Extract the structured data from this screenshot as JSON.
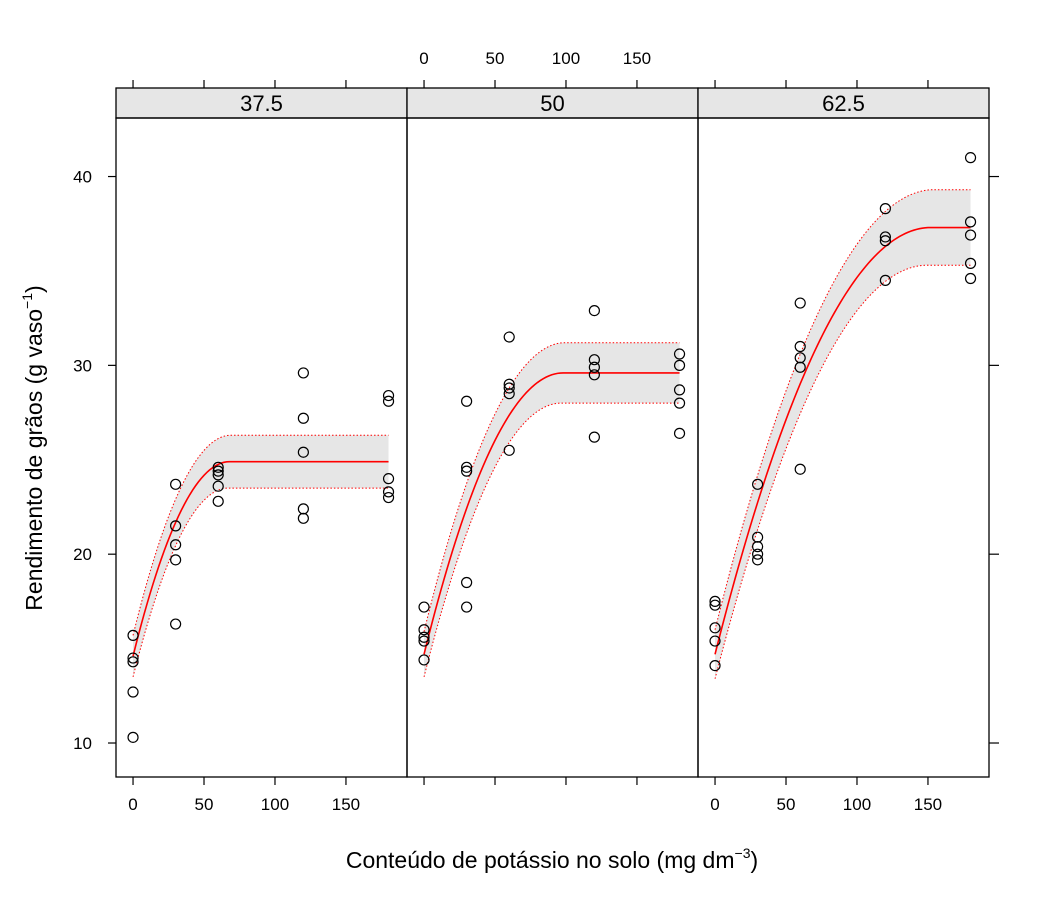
{
  "chart_data": {
    "type": "scatter",
    "layout": "three panels side by side with shared y axis",
    "xlabel": {
      "main": "Conteúdo de potássio no solo (mg dm",
      "sup": "−3",
      "close": ")"
    },
    "ylabel": {
      "main": "Rendimento de grãos (g vaso",
      "sup": "−1",
      "close": ")"
    },
    "xlim": [
      -12,
      193
    ],
    "ylim": [
      8.2,
      43.1
    ],
    "x_ticks": [
      0,
      50,
      100,
      150
    ],
    "y_ticks": [
      10,
      20,
      30,
      40
    ],
    "fit_line_color": "#ff0000",
    "band_fill_color": "#e6e6e6",
    "band_edge_color": "#ff0000",
    "strip_color": "#e6e6e6",
    "marker": "open-circle",
    "panels": [
      {
        "label": "37.5",
        "points": [
          [
            0,
            15.7
          ],
          [
            0,
            14.5
          ],
          [
            0,
            14.3
          ],
          [
            0,
            12.7
          ],
          [
            0,
            10.3
          ],
          [
            30,
            23.7
          ],
          [
            30,
            21.5
          ],
          [
            30,
            20.5
          ],
          [
            30,
            19.7
          ],
          [
            30,
            16.3
          ],
          [
            60,
            24.6
          ],
          [
            60,
            24.4
          ],
          [
            60,
            24.2
          ],
          [
            60,
            23.6
          ],
          [
            60,
            22.8
          ],
          [
            120,
            29.6
          ],
          [
            120,
            27.2
          ],
          [
            120,
            25.4
          ],
          [
            120,
            22.4
          ],
          [
            120,
            21.9
          ],
          [
            180,
            28.4
          ],
          [
            180,
            28.1
          ],
          [
            180,
            24.0
          ],
          [
            180,
            23.3
          ],
          [
            180,
            23.0
          ]
        ],
        "fit": {
          "y0": 14.6,
          "plateau": 24.9,
          "x_plateau": 68
        },
        "band_halfwidth": {
          "start": 1.1,
          "plateau": 1.4
        }
      },
      {
        "label": "50",
        "points": [
          [
            0,
            17.2
          ],
          [
            0,
            16.0
          ],
          [
            0,
            15.6
          ],
          [
            0,
            15.4
          ],
          [
            0,
            14.4
          ],
          [
            30,
            28.1
          ],
          [
            30,
            24.6
          ],
          [
            30,
            24.4
          ],
          [
            30,
            18.5
          ],
          [
            30,
            17.2
          ],
          [
            60,
            31.5
          ],
          [
            60,
            29.0
          ],
          [
            60,
            28.8
          ],
          [
            60,
            28.5
          ],
          [
            60,
            25.5
          ],
          [
            120,
            32.9
          ],
          [
            120,
            30.3
          ],
          [
            120,
            29.9
          ],
          [
            120,
            29.5
          ],
          [
            120,
            26.2
          ],
          [
            180,
            30.6
          ],
          [
            180,
            30.0
          ],
          [
            180,
            28.7
          ],
          [
            180,
            28.0
          ],
          [
            180,
            26.4
          ]
        ],
        "fit": {
          "y0": 14.7,
          "plateau": 29.6,
          "x_plateau": 98
        },
        "band_halfwidth": {
          "start": 1.2,
          "plateau": 1.6
        }
      },
      {
        "label": "62.5",
        "points": [
          [
            0,
            17.5
          ],
          [
            0,
            17.3
          ],
          [
            0,
            16.1
          ],
          [
            0,
            15.4
          ],
          [
            0,
            14.1
          ],
          [
            30,
            23.7
          ],
          [
            30,
            20.9
          ],
          [
            30,
            20.4
          ],
          [
            30,
            20.0
          ],
          [
            30,
            19.7
          ],
          [
            60,
            33.3
          ],
          [
            60,
            31.0
          ],
          [
            60,
            30.4
          ],
          [
            60,
            29.9
          ],
          [
            60,
            24.5
          ],
          [
            120,
            38.3
          ],
          [
            120,
            36.8
          ],
          [
            120,
            36.6
          ],
          [
            120,
            34.5
          ],
          [
            180,
            41.0
          ],
          [
            180,
            37.6
          ],
          [
            180,
            36.9
          ],
          [
            180,
            35.4
          ],
          [
            180,
            34.6
          ]
        ],
        "fit": {
          "y0": 14.7,
          "plateau": 37.3,
          "x_plateau": 152
        },
        "band_halfwidth": {
          "start": 1.3,
          "plateau": 2.0
        }
      }
    ]
  }
}
